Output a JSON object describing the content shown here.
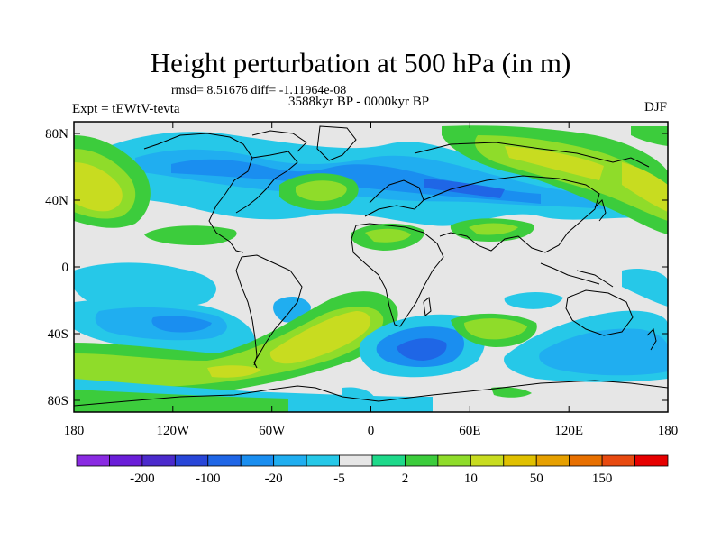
{
  "title": "Height perturbation at 500 hPa (in m)",
  "stats": "rmsd= 8.51676 diff= -1.11964e-08",
  "period": "3588kyr BP - 0000kyr BP",
  "experiment": "Expt = tEWtV-tevta",
  "season": "DJF",
  "lat_ticks": [
    "80N",
    "40N",
    "0",
    "40S",
    "80S"
  ],
  "lon_ticks": [
    "180",
    "120W",
    "60W",
    "0",
    "60E",
    "120E",
    "180"
  ],
  "colorbar": {
    "colors": [
      "#8a2be2",
      "#6a1ed8",
      "#4b2acc",
      "#2846d8",
      "#1f66e6",
      "#1a8ef0",
      "#20aef0",
      "#26c8e8",
      "#e6e6e6",
      "#1ed98a",
      "#3ccc3c",
      "#8fdc2a",
      "#c8dc20",
      "#e0c000",
      "#e6a000",
      "#e87000",
      "#e84a10",
      "#e60000"
    ],
    "labels": [
      "-200",
      "-100",
      "-20",
      "-5",
      "2",
      "10",
      "50",
      "150"
    ]
  }
}
